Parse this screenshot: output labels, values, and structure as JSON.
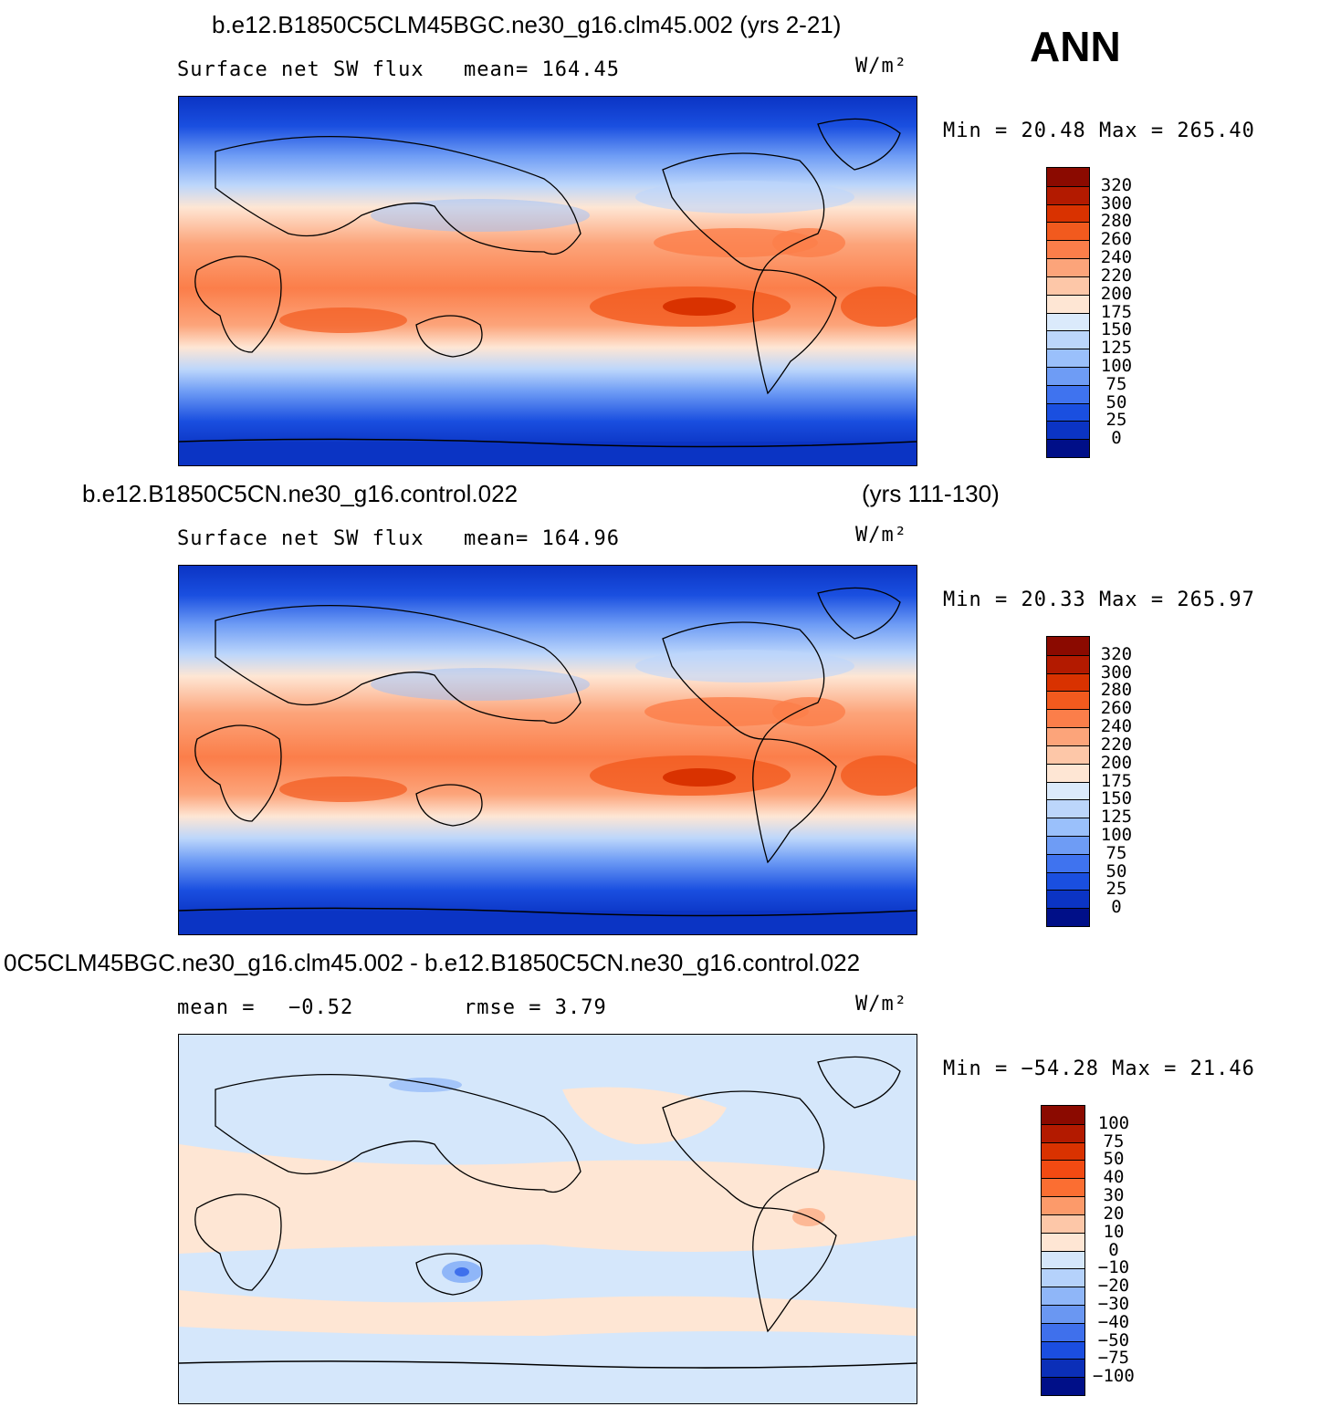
{
  "season": "ANN",
  "units": "W/m²",
  "panels": [
    {
      "case_title": "b.e12.B1850C5CLM45BGC.ne30_g16.clm45.002 (yrs 2-21)",
      "case_title_right": "",
      "variable": "Surface net SW flux",
      "stat": "mean= 164.45",
      "stat2": "",
      "minmax": "Min =  20.48 Max = 265.40",
      "levels": [
        "320",
        "300",
        "280",
        "260",
        "240",
        "220",
        "200",
        "175",
        "150",
        "125",
        "100",
        "75",
        "50",
        "25",
        "0"
      ],
      "colors": [
        "#8b0a00",
        "#b31a00",
        "#d93200",
        "#f25a1e",
        "#fb7e4a",
        "#fca47a",
        "#fdc7a8",
        "#fee6d4",
        "#dbeafb",
        "#bcd6fb",
        "#9ac0fb",
        "#6e9cf5",
        "#3f73ef",
        "#1a4fe0",
        "#0b34c4",
        "#000f88"
      ]
    },
    {
      "case_title": "b.e12.B1850C5CN.ne30_g16.control.022",
      "case_title_right": "(yrs 111-130)",
      "variable": "Surface net SW flux",
      "stat": "mean= 164.96",
      "stat2": "",
      "minmax": "Min =  20.33 Max = 265.97",
      "levels": [
        "320",
        "300",
        "280",
        "260",
        "240",
        "220",
        "200",
        "175",
        "150",
        "125",
        "100",
        "75",
        "50",
        "25",
        "0"
      ],
      "colors": [
        "#8b0a00",
        "#b31a00",
        "#d93200",
        "#f25a1e",
        "#fb7e4a",
        "#fca47a",
        "#fdc7a8",
        "#fee6d4",
        "#dbeafb",
        "#bcd6fb",
        "#9ac0fb",
        "#6e9cf5",
        "#3f73ef",
        "#1a4fe0",
        "#0b34c4",
        "#000f88"
      ]
    },
    {
      "case_title": "0C5CLM45BGC.ne30_g16.clm45.002 - b.e12.B1850C5CN.ne30_g16.control.022",
      "case_title_right": "",
      "variable": "mean =",
      "stat": "−0.52",
      "stat2": "rmse =      3.79",
      "minmax": "Min = −54.28 Max =   21.46",
      "levels": [
        "100",
        "75",
        "50",
        "40",
        "30",
        "20",
        "10",
        "0",
        "−10",
        "−20",
        "−30",
        "−40",
        "−50",
        "−75",
        "−100"
      ],
      "colors": [
        "#8b0a00",
        "#b31a00",
        "#d93200",
        "#f24a12",
        "#fb6e32",
        "#fc9a6a",
        "#fdc7a8",
        "#fee6d4",
        "#d5e7fb",
        "#b5d2fb",
        "#8fb6f8",
        "#6a97f2",
        "#3f70ec",
        "#1b4ee0",
        "#0b2fb8",
        "#000f88"
      ]
    }
  ]
}
